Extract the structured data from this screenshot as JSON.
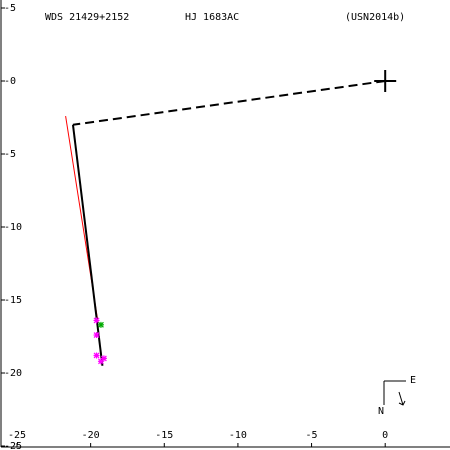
{
  "chart_data": {
    "type": "scatter",
    "titles": [
      "WDS 21429+2152",
      "HJ 1683AC",
      "(USN2014b)"
    ],
    "xlim": [
      -25,
      4.4
    ],
    "ylim": [
      -25,
      5
    ],
    "xticks": [
      -25,
      -20,
      -15,
      -10,
      -5,
      0
    ],
    "yticks": [
      {
        "value": 5,
        "label": "-5"
      },
      {
        "value": 0,
        "label": "-0"
      },
      -5,
      -10,
      -15,
      -20,
      -25
    ],
    "lines": [
      {
        "color": "#000000",
        "dash": true,
        "x": [
          0,
          -21.2
        ],
        "values": [
          0,
          -3.0
        ]
      },
      {
        "color": "#ff0000",
        "dash": false,
        "x": [
          -21.7,
          -19.5
        ],
        "values": [
          -2.4,
          -16.5
        ]
      },
      {
        "color": "#000000",
        "dash": false,
        "x": [
          -21.2,
          -19.2
        ],
        "values": [
          -3.0,
          -19.5
        ]
      }
    ],
    "points": [
      {
        "color": "#ff00ff",
        "x": [
          -19.6,
          -19.6,
          -19.6,
          -19.3,
          -19.1
        ],
        "values": [
          -16.4,
          -17.4,
          -18.8,
          -19.2,
          -19.0
        ]
      },
      {
        "color": "#00aa00",
        "x": [
          -19.3
        ],
        "values": [
          -16.7
        ]
      }
    ],
    "compass": [
      "N",
      "E"
    ]
  }
}
